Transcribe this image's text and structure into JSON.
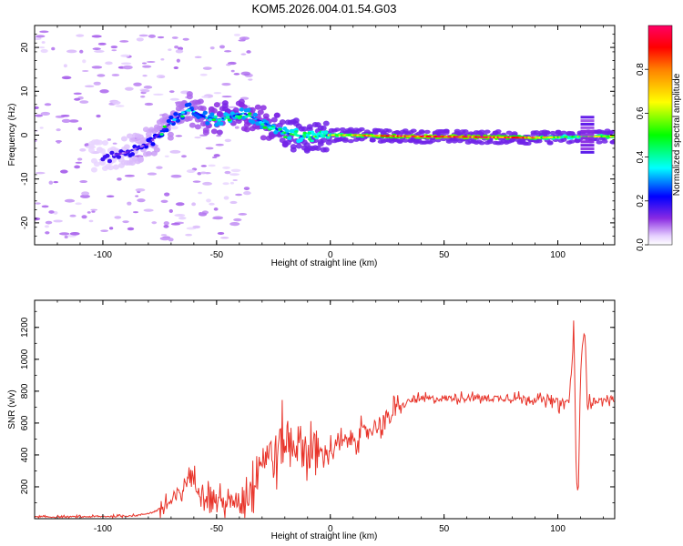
{
  "figure": {
    "title": "KOM5.2026.004.01.54.G03"
  },
  "colors": {
    "line": "#e8342a",
    "axis": "#000000",
    "spectrum_low": "#b88cff",
    "spectrum_mid": "#0000ff",
    "spectrum_high": "#ff0000"
  },
  "chart_data": [
    {
      "type": "heatmap",
      "name": "spectrogram",
      "xlabel": "Height of straight line (km)",
      "ylabel": "Frequency (Hz)",
      "xlim": [
        -130,
        125
      ],
      "ylim": [
        -25,
        25
      ],
      "x_ticks": [
        -100,
        -50,
        0,
        50,
        100
      ],
      "x_tick_labels": [
        "-100",
        "-50",
        "0",
        "50",
        "100"
      ],
      "y_ticks": [
        -20,
        -10,
        0,
        10,
        20
      ],
      "y_tick_labels": [
        "-20",
        "-10",
        "0",
        "10",
        "20"
      ],
      "colorbar": {
        "label": "Normalized spectral amplitude",
        "range": [
          0,
          1
        ],
        "ticks": [
          0.0,
          0.2,
          0.4,
          0.6,
          0.8
        ],
        "tick_labels": [
          "0.0",
          "0.2",
          "0.4",
          "0.6",
          "0.8"
        ]
      },
      "ridge": [
        {
          "x": -100,
          "f": -5,
          "a": 0.12
        },
        {
          "x": -90,
          "f": -4,
          "a": 0.15
        },
        {
          "x": -80,
          "f": -2,
          "a": 0.2
        },
        {
          "x": -72,
          "f": 2,
          "a": 0.25
        },
        {
          "x": -62,
          "f": 6,
          "a": 0.3
        },
        {
          "x": -55,
          "f": 4,
          "a": 0.35
        },
        {
          "x": -50,
          "f": 3.5,
          "a": 0.4
        },
        {
          "x": -45,
          "f": 4,
          "a": 0.45
        },
        {
          "x": -38,
          "f": 5,
          "a": 0.4
        },
        {
          "x": -30,
          "f": 3,
          "a": 0.4
        },
        {
          "x": -20,
          "f": 0.5,
          "a": 0.45
        },
        {
          "x": -10,
          "f": -0.5,
          "a": 0.5
        },
        {
          "x": 0,
          "f": 0,
          "a": 0.6
        },
        {
          "x": 10,
          "f": 0,
          "a": 0.7
        },
        {
          "x": 25,
          "f": -0.2,
          "a": 0.85
        },
        {
          "x": 40,
          "f": -0.3,
          "a": 0.95
        },
        {
          "x": 60,
          "f": -0.4,
          "a": 0.95
        },
        {
          "x": 75,
          "f": -0.5,
          "a": 0.9
        },
        {
          "x": 90,
          "f": -0.6,
          "a": 0.75
        },
        {
          "x": 105,
          "f": -0.4,
          "a": 0.5
        },
        {
          "x": 115,
          "f": -0.3,
          "a": 0.6
        },
        {
          "x": 122,
          "f": -0.3,
          "a": 0.7
        }
      ]
    },
    {
      "type": "line",
      "name": "snr",
      "xlabel": "Height of straight line (km)",
      "ylabel": "SNR (v/v)",
      "xlim": [
        -130,
        125
      ],
      "ylim": [
        0,
        1370
      ],
      "x_ticks": [
        -100,
        -50,
        0,
        50,
        100
      ],
      "x_tick_labels": [
        "-100",
        "-50",
        "0",
        "50",
        "100"
      ],
      "y_ticks": [
        200,
        400,
        600,
        800,
        1000,
        1200
      ],
      "y_tick_labels": [
        "200",
        "400",
        "600",
        "800",
        "1000",
        "1200"
      ],
      "series": [
        {
          "name": "SNR",
          "x": [
            -130,
            -110,
            -95,
            -85,
            -78,
            -70,
            -65,
            -62,
            -58,
            -55,
            -50,
            -45,
            -40,
            -35,
            -32,
            -28,
            -25,
            -22,
            -18,
            -15,
            -12,
            -8,
            -5,
            0,
            5,
            10,
            15,
            20,
            25,
            30,
            35,
            40,
            50,
            60,
            70,
            80,
            90,
            95,
            100,
            103,
            105,
            106,
            107,
            108,
            109,
            110,
            111,
            112,
            113,
            114,
            116,
            120,
            125
          ],
          "y": [
            10,
            12,
            15,
            20,
            40,
            100,
            180,
            280,
            200,
            150,
            120,
            90,
            120,
            200,
            350,
            420,
            380,
            450,
            500,
            480,
            450,
            420,
            400,
            430,
            470,
            510,
            540,
            580,
            630,
            690,
            740,
            750,
            755,
            760,
            755,
            758,
            750,
            740,
            735,
            720,
            740,
            900,
            1260,
            300,
            180,
            900,
            1100,
            1200,
            700,
            750,
            740,
            742,
            745
          ]
        }
      ]
    }
  ]
}
